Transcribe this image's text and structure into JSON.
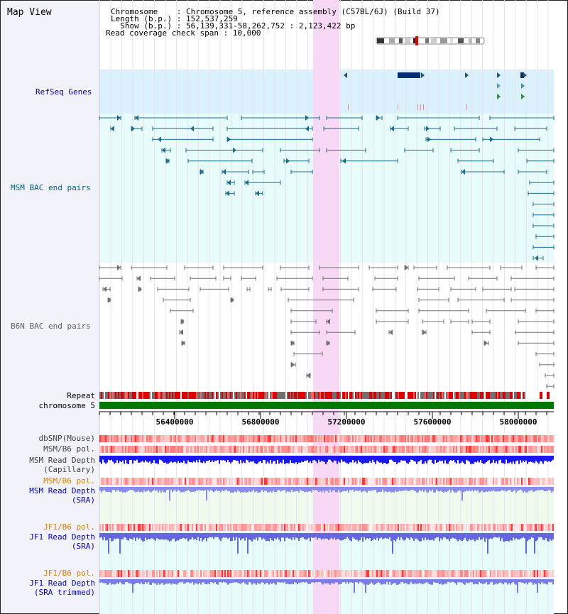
{
  "title": "Map View",
  "info": {
    "chromosome_line": "Chromosome    : Chromosome 5, reference assembly (C57BL/6J) (Build 37)",
    "length_line": "Length (b.p.) : 152,537,259",
    "show_line": "  Show (b.p.) : 56,139,331-58,262,752 : 2,123,422 bp",
    "coverage_line": "Read coverage check span : 10,000"
  },
  "tracks": {
    "refseq": "RefSeq Genes",
    "msm_bac": "MSM BAC end pairs",
    "b6n_bac": "B6N BAC end pairs",
    "repeat": "Repeat",
    "chromosome": "chromosome 5",
    "dbsnp": "dbSNP(Mouse)",
    "msm_b6_pol": "MSM/B6 pol.",
    "msm_depth_cap_1": "MSM Read Depth",
    "msm_depth_cap_2": "(Capillary)",
    "msm_b6_pol_2": "MSM/B6 pol.",
    "msm_depth_sra_1": "MSM Read Depth",
    "msm_depth_sra_2": "(SRA)",
    "jf1_pol": "JF1/B6 pol.",
    "jf1_depth_sra_1": "JF1 Read Depth",
    "jf1_depth_sra_2": "(SRA)",
    "jf1_pol_2": "JF1/B6 pol.",
    "jf1_depth_trim_1": "JF1 Read Depth",
    "jf1_depth_trim_2": "(SRA trimmed)"
  },
  "axis": {
    "ticks": [
      "56400000",
      "56800000",
      "57200000",
      "57600000",
      "58000000"
    ]
  },
  "colors": {
    "refseq_label": "#0000aa",
    "msm_label": "#006080",
    "b6n_label": "#606060",
    "orange_label": "#e08000",
    "blue_label": "#0000cc",
    "highlight": "#f8d8f4",
    "chromosome_bar": "#007700"
  }
}
